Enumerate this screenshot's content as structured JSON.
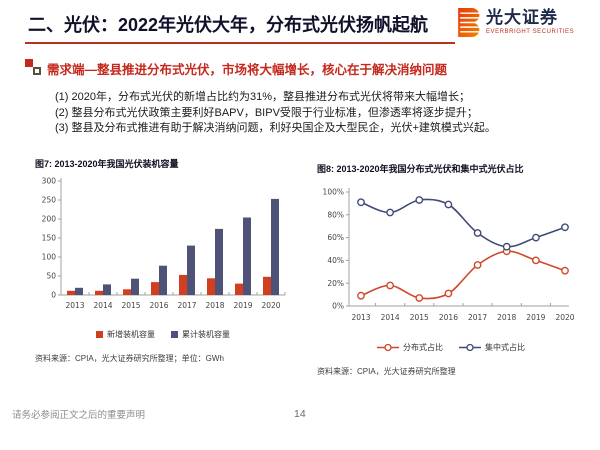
{
  "header": {
    "title": "二、光伏：2022年光伏大年，分布式光伏扬帆起航",
    "logo_text": "光大证券",
    "logo_subtext": "EVERBRIGHT SECURITIES"
  },
  "section": {
    "heading": "需求端—整县推进分布式光伏，市场将大幅增长，核心在于解决消纳问题",
    "points": [
      "(1) 2020年，分布式光伏的新增占比约为31%，整县推进分布式光伏将带来大幅增长；",
      "(2) 整县分布式光伏政策主要利好BAPV，BIPV受限于行业标准，但渗透率将逐步提升；",
      "(3) 整县及分布式推进有助于解决消纳问题，利好央国企及大型民企，光伏+建筑模式兴起。"
    ]
  },
  "figures": [
    {
      "title": "图7: 2013-2020年我国光伏装机容量",
      "source": "资料来源：CPIA，光大证券研究所整理；单位：GWh"
    },
    {
      "title": "图8: 2013-2020年我国分布式光伏和集中式光伏占比",
      "source": "资料来源：CPIA，光大证券研究所整理"
    }
  ],
  "chart_data": [
    {
      "type": "bar",
      "title": "图7: 2013-2020年我国光伏装机容量",
      "categories": [
        "2013",
        "2014",
        "2015",
        "2016",
        "2017",
        "2018",
        "2019",
        "2020"
      ],
      "series": [
        {
          "name": "新增装机容量",
          "color": "#d04020",
          "values": [
            11,
            11,
            15,
            34,
            53,
            44,
            30,
            48
          ]
        },
        {
          "name": "累计装机容量",
          "color": "#4e5277",
          "values": [
            19,
            28,
            43,
            77,
            130,
            174,
            204,
            253
          ]
        }
      ],
      "xlabel": "",
      "ylabel": "GWh",
      "ylim": [
        0,
        300
      ],
      "yticks": [
        0,
        50,
        100,
        150,
        200,
        250,
        300
      ],
      "grid": false,
      "legend_position": "bottom"
    },
    {
      "type": "line",
      "title": "图8: 2013-2020年我国分布式光伏和集中式光伏占比",
      "categories": [
        "2013",
        "2014",
        "2015",
        "2016",
        "2017",
        "2018",
        "2019",
        "2020"
      ],
      "series": [
        {
          "name": "分布式占比",
          "color": "#d0482a",
          "values": [
            9,
            18,
            7,
            11,
            36,
            48,
            40,
            31
          ]
        },
        {
          "name": "集中式占比",
          "color": "#414a78",
          "values": [
            91,
            82,
            93,
            89,
            64,
            52,
            60,
            69
          ]
        }
      ],
      "xlabel": "",
      "ylabel": "占比",
      "ylim": [
        0,
        100
      ],
      "yticks": [
        0,
        20,
        40,
        60,
        80,
        100
      ],
      "ytick_suffix": "%",
      "grid": false,
      "legend_position": "bottom",
      "marker": "open-circle",
      "smooth": true
    }
  ],
  "footer": {
    "disclaimer": "请务必参阅正文之后的重要声明",
    "page_number": "14"
  },
  "colors": {
    "accent_red": "#b5311f",
    "heading_red": "#c5281c",
    "bar_new": "#d04020",
    "bar_cumulative": "#4e5277",
    "line_distributed": "#d0482a",
    "line_centralized": "#414a78",
    "axis": "#a0a0a0",
    "tick_label": "#444444"
  }
}
